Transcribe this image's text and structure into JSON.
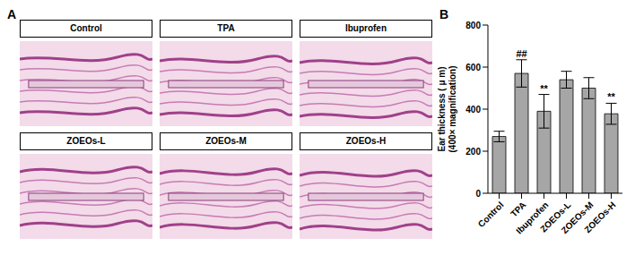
{
  "panel_labels": [
    "A",
    "B"
  ],
  "images": {
    "labels": [
      "Control",
      "TPA",
      "Ibuprofen",
      "ZOEOs-L",
      "ZOEOs-M",
      "ZOEOs-H"
    ]
  },
  "chart_data": {
    "type": "bar",
    "categories": [
      "Control",
      "TPA",
      "Ibuprofen",
      "ZOEOs-L",
      "ZOEOs-M",
      "ZOEOs-H"
    ],
    "values": [
      270,
      570,
      390,
      540,
      500,
      378
    ],
    "errors": [
      25,
      65,
      80,
      40,
      50,
      50
    ],
    "annotations": [
      null,
      "##",
      "**",
      null,
      null,
      "**"
    ],
    "ylabel": [
      "Ear thickness ( μ m)",
      "(400× magnification)"
    ],
    "ylim": [
      0,
      800
    ],
    "yticks": [
      0,
      200,
      400,
      600,
      800
    ],
    "color": "#a6a6a6",
    "grid": false
  }
}
